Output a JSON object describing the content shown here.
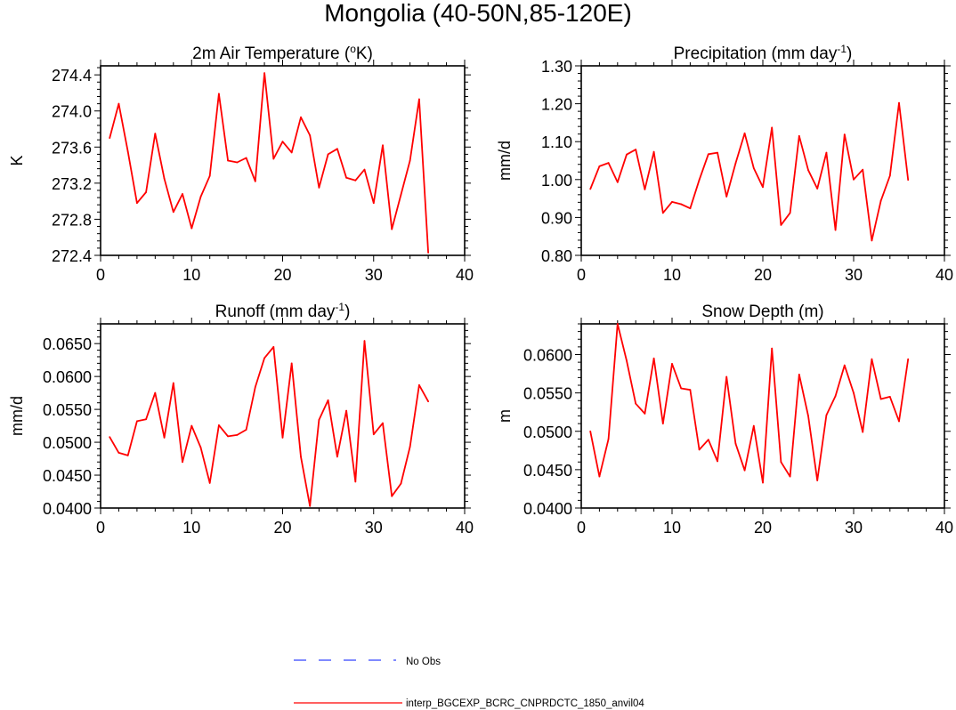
{
  "figure": {
    "title": "Mongolia (40-50N,85-120E)"
  },
  "legend": [
    {
      "label": "No Obs",
      "color": "#3344ff",
      "dash": "dashed"
    },
    {
      "label": "interp_BGCEXP_BCRC_CNPRDCTC_1850_anvil04",
      "color": "#ff0000",
      "dash": "solid"
    }
  ],
  "chart_data": [
    {
      "type": "line",
      "title": "2m Air Temperature (oK)",
      "title_parts": {
        "main": "2m Air Temperature (",
        "sup": "o",
        "tail": "K)"
      },
      "ylabel": "K",
      "xlim": [
        0,
        40
      ],
      "ylim": [
        272.4,
        274.5
      ],
      "xticks": [
        0,
        10,
        20,
        30,
        40
      ],
      "yticks": [
        272.4,
        272.8,
        273.2,
        273.6,
        274.0,
        274.4
      ],
      "yticklabels": [
        "272.4",
        "272.8",
        "273.2",
        "273.6",
        "274.0",
        "274.4"
      ],
      "series": [
        {
          "color": "#ff0000",
          "x": [
            1,
            2,
            3,
            4,
            5,
            6,
            7,
            8,
            9,
            10,
            11,
            12,
            13,
            14,
            15,
            16,
            17,
            18,
            19,
            20,
            21,
            22,
            23,
            24,
            25,
            26,
            27,
            28,
            29,
            30,
            31,
            32,
            33,
            34,
            35,
            36
          ],
          "values": [
            273.7,
            274.08,
            273.55,
            272.98,
            273.1,
            273.75,
            273.25,
            272.88,
            273.08,
            272.7,
            273.05,
            273.28,
            274.19,
            273.45,
            273.43,
            273.48,
            273.22,
            274.42,
            273.47,
            273.66,
            273.54,
            273.93,
            273.73,
            273.15,
            273.52,
            273.58,
            273.26,
            273.23,
            273.35,
            272.98,
            273.62,
            272.69,
            273.07,
            273.45,
            274.13,
            272.43
          ]
        }
      ]
    },
    {
      "type": "line",
      "title": "Precipitation (mm day-1)",
      "title_parts": {
        "main": "Precipitation (mm day",
        "sup": "-1",
        "tail": ")"
      },
      "ylabel": "mm/d",
      "xlim": [
        0,
        40
      ],
      "ylim": [
        0.8,
        1.3
      ],
      "xticks": [
        0,
        10,
        20,
        30,
        40
      ],
      "yticks": [
        0.8,
        0.9,
        1.0,
        1.1,
        1.2,
        1.3
      ],
      "yticklabels": [
        "0.80",
        "0.90",
        "1.00",
        "1.10",
        "1.20",
        "1.30"
      ],
      "series": [
        {
          "color": "#ff0000",
          "x": [
            1,
            2,
            3,
            4,
            5,
            6,
            7,
            8,
            9,
            10,
            11,
            12,
            13,
            14,
            15,
            16,
            17,
            18,
            19,
            20,
            21,
            22,
            23,
            24,
            25,
            26,
            27,
            28,
            29,
            30,
            31,
            32,
            33,
            34,
            35,
            36
          ],
          "values": [
            0.975,
            1.035,
            1.044,
            0.993,
            1.066,
            1.079,
            0.974,
            1.073,
            0.912,
            0.941,
            0.935,
            0.924,
            0.999,
            1.067,
            1.071,
            0.955,
            1.043,
            1.122,
            1.03,
            0.98,
            1.137,
            0.88,
            0.912,
            1.115,
            1.025,
            0.976,
            1.071,
            0.867,
            1.119,
            1.0,
            1.026,
            0.839,
            0.944,
            1.01,
            1.202,
            0.999
          ]
        }
      ]
    },
    {
      "type": "line",
      "title": "Runoff (mm day-1)",
      "title_parts": {
        "main": "Runoff (mm day",
        "sup": "-1",
        "tail": ")"
      },
      "ylabel": "mm/d",
      "xlim": [
        0,
        40
      ],
      "ylim": [
        0.04,
        0.068
      ],
      "xticks": [
        0,
        10,
        20,
        30,
        40
      ],
      "yticks": [
        0.04,
        0.045,
        0.05,
        0.055,
        0.06,
        0.065
      ],
      "yticklabels": [
        "0.0400",
        "0.0450",
        "0.0500",
        "0.0550",
        "0.0600",
        "0.0650"
      ],
      "series": [
        {
          "color": "#ff0000",
          "x": [
            1,
            2,
            3,
            4,
            5,
            6,
            7,
            8,
            9,
            10,
            11,
            12,
            13,
            14,
            15,
            16,
            17,
            18,
            19,
            20,
            21,
            22,
            23,
            24,
            25,
            26,
            27,
            28,
            29,
            30,
            31,
            32,
            33,
            34,
            35,
            36
          ],
          "values": [
            0.0508,
            0.0484,
            0.048,
            0.0532,
            0.0535,
            0.0575,
            0.0507,
            0.059,
            0.047,
            0.0525,
            0.0492,
            0.0438,
            0.0526,
            0.0509,
            0.0511,
            0.0519,
            0.0584,
            0.0628,
            0.0645,
            0.0507,
            0.062,
            0.0478,
            0.0403,
            0.0534,
            0.0564,
            0.0478,
            0.0548,
            0.044,
            0.0654,
            0.0512,
            0.0529,
            0.0418,
            0.0437,
            0.0493,
            0.0587,
            0.0562
          ]
        }
      ]
    },
    {
      "type": "line",
      "title": "Snow Depth (m)",
      "title_parts": {
        "main": "Snow Depth (m)",
        "sup": "",
        "tail": ""
      },
      "ylabel": "m",
      "xlim": [
        0,
        40
      ],
      "ylim": [
        0.04,
        0.064
      ],
      "xticks": [
        0,
        10,
        20,
        30,
        40
      ],
      "yticks": [
        0.04,
        0.045,
        0.05,
        0.055,
        0.06
      ],
      "yticklabels": [
        "0.0400",
        "0.0450",
        "0.0500",
        "0.0550",
        "0.0600"
      ],
      "series": [
        {
          "color": "#ff0000",
          "x": [
            1,
            2,
            3,
            4,
            5,
            6,
            7,
            8,
            9,
            10,
            11,
            12,
            13,
            14,
            15,
            16,
            17,
            18,
            19,
            20,
            21,
            22,
            23,
            24,
            25,
            26,
            27,
            28,
            29,
            30,
            31,
            32,
            33,
            34,
            35,
            36
          ],
          "values": [
            0.05,
            0.0441,
            0.049,
            0.064,
            0.0592,
            0.0536,
            0.0523,
            0.0595,
            0.051,
            0.0588,
            0.0556,
            0.0554,
            0.0476,
            0.0489,
            0.0461,
            0.0571,
            0.0484,
            0.0449,
            0.0507,
            0.0433,
            0.0608,
            0.046,
            0.0441,
            0.0574,
            0.052,
            0.0436,
            0.0521,
            0.0546,
            0.0586,
            0.055,
            0.0499,
            0.0594,
            0.0542,
            0.0545,
            0.0513,
            0.0594
          ]
        }
      ]
    }
  ]
}
